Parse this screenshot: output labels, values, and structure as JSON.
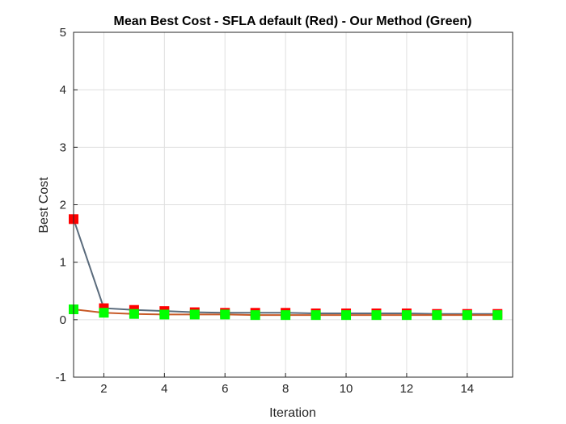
{
  "chart_data": {
    "type": "line",
    "title": "Mean Best Cost - SFLA default (Red) - Our Method (Green)",
    "xlabel": "Iteration",
    "ylabel": "Best Cost",
    "xlim": [
      1,
      15.5
    ],
    "ylim": [
      -1,
      5
    ],
    "xticks": [
      2,
      4,
      6,
      8,
      10,
      12,
      14
    ],
    "yticks": [
      -1,
      0,
      1,
      2,
      3,
      4,
      5
    ],
    "grid": true,
    "x": [
      1,
      2,
      3,
      4,
      5,
      6,
      7,
      8,
      9,
      10,
      11,
      12,
      13,
      14,
      15
    ],
    "series": [
      {
        "color": "#ff0000",
        "line_color": "#5a6b7c",
        "marker": "square",
        "values": [
          1.75,
          0.2,
          0.17,
          0.15,
          0.13,
          0.12,
          0.12,
          0.12,
          0.11,
          0.11,
          0.11,
          0.11,
          0.1,
          0.1,
          0.1
        ]
      },
      {
        "color": "#00ff00",
        "line_color": "#c85a28",
        "marker": "square",
        "values": [
          0.18,
          0.12,
          0.1,
          0.09,
          0.09,
          0.09,
          0.08,
          0.08,
          0.08,
          0.08,
          0.08,
          0.08,
          0.08,
          0.08,
          0.08
        ]
      }
    ]
  }
}
